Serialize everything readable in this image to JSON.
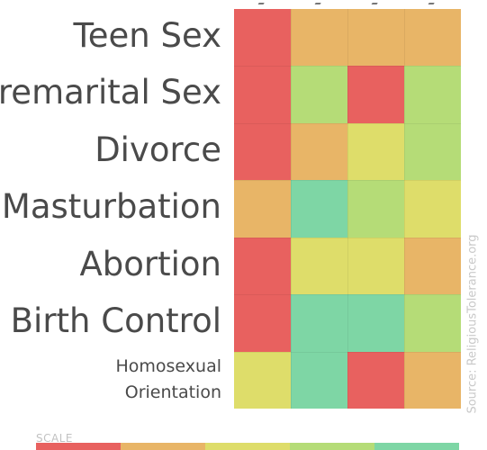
{
  "chart_data": {
    "type": "heatmap",
    "title": "",
    "rows": [
      "Teen Sex",
      "Premarital Sex",
      "Divorce",
      "Masturbation",
      "Abortion",
      "Birth Control",
      "Homosexual Orientation"
    ],
    "row_label_lines": [
      [
        "Teen Sex"
      ],
      [
        "Premarital Sex"
      ],
      [
        "Divorce"
      ],
      [
        "Masturbation"
      ],
      [
        "Abortion"
      ],
      [
        "Birth Control"
      ],
      [
        "Homosexual",
        "Orientation"
      ]
    ],
    "row_label_size": [
      "big",
      "big",
      "big",
      "big",
      "big",
      "big",
      "small"
    ],
    "columns_shown": 4,
    "values": [
      [
        1,
        2,
        2,
        2
      ],
      [
        1,
        4,
        1,
        4
      ],
      [
        1,
        2,
        3,
        4
      ],
      [
        2,
        5,
        4,
        3
      ],
      [
        1,
        3,
        3,
        2
      ],
      [
        1,
        5,
        5,
        4
      ],
      [
        3,
        5,
        1,
        2
      ]
    ],
    "scale": {
      "label": "SCALE",
      "levels": [
        1,
        2,
        3,
        4,
        5
      ]
    },
    "colors": {
      "1": "#e8615f",
      "2": "#e8b567",
      "3": "#dedd6a",
      "4": "#b5dc77",
      "5": "#7ed6a5"
    },
    "source": "Source: ReligiousTolerance.org"
  }
}
